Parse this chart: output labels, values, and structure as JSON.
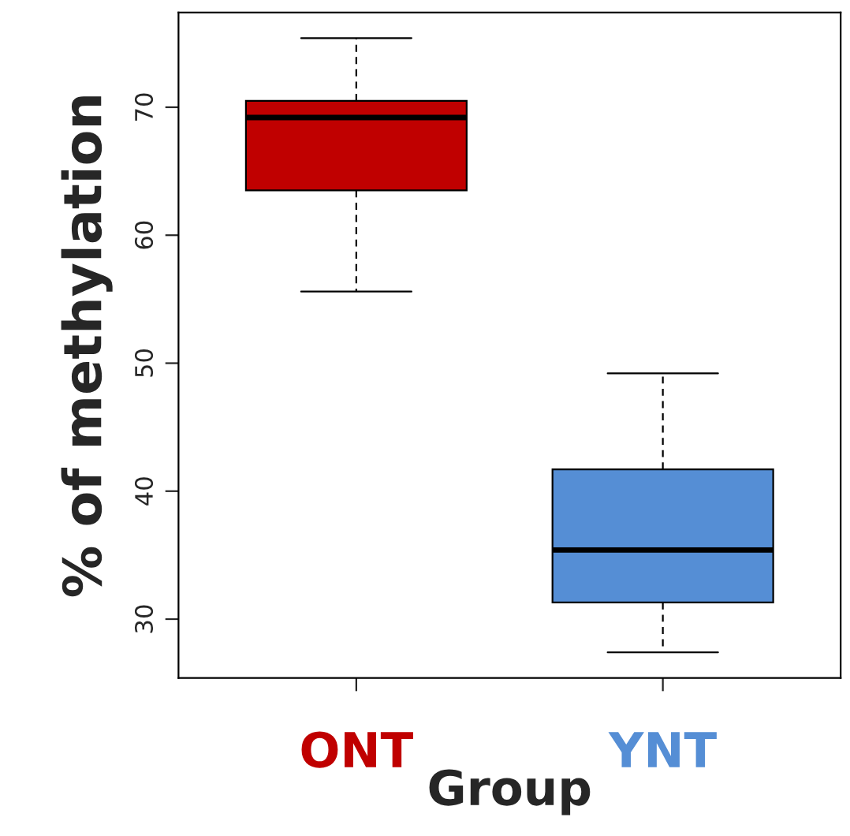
{
  "chart_data": {
    "type": "box",
    "xlabel": "Group",
    "ylabel": "% of methylation",
    "categories": [
      "ONT",
      "YNT"
    ],
    "colors": [
      "#c00000",
      "#558ed5"
    ],
    "boxes": [
      {
        "low": 55.6,
        "q1": 63.5,
        "median": 69.2,
        "q3": 70.5,
        "high": 75.4
      },
      {
        "low": 27.4,
        "q1": 31.3,
        "median": 35.4,
        "q3": 41.7,
        "high": 49.2
      }
    ],
    "ylim": [
      25.4,
      77.4
    ],
    "yticks": [
      30,
      40,
      50,
      60,
      70
    ],
    "grid": false,
    "legend": false
  }
}
